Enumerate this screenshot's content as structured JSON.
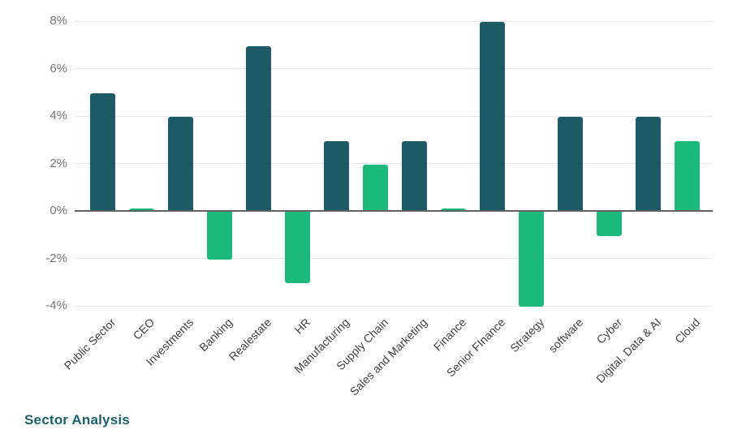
{
  "title": "Sector Analysis",
  "chart_data": {
    "type": "bar",
    "title": "Sector Analysis",
    "xlabel": "",
    "ylabel": "",
    "categories": [
      "Public Sector",
      "CEO",
      "Investments",
      "Banking",
      "Realestate",
      "HR",
      "Manufacturing",
      "Supply Chain",
      "Sales and Marketing",
      "Finance",
      "Senior FInance",
      "Strategy",
      "software",
      "Cyber",
      "Digital, Data & AI",
      "Cloud"
    ],
    "values": [
      4.95,
      0.1,
      3.95,
      -2.05,
      6.95,
      -3.05,
      2.95,
      1.95,
      2.95,
      0.1,
      7.95,
      -4.05,
      3.95,
      -1.05,
      3.95,
      2.95
    ],
    "bar_colors": [
      "dark",
      "green",
      "dark",
      "green",
      "dark",
      "green",
      "dark",
      "green",
      "dark",
      "green",
      "dark",
      "green",
      "dark",
      "green",
      "dark",
      "green"
    ],
    "ylim": [
      -4,
      8
    ],
    "grid": true,
    "legend": false,
    "yticks": [
      {
        "value": 8,
        "label": "8%"
      },
      {
        "value": 6,
        "label": "6%"
      },
      {
        "value": 4,
        "label": "4%"
      },
      {
        "value": 2,
        "label": "2%"
      },
      {
        "value": 0,
        "label": "0%"
      },
      {
        "value": -2,
        "label": "-2%"
      },
      {
        "value": -4,
        "label": "-4%"
      }
    ],
    "colors": {
      "bar_dark": "#1d5a66",
      "bar_green": "#1cb97c",
      "gridline": "#e3e3e3",
      "axis_line": "#616161",
      "ytick_text": "#757575",
      "xtick_text": "#3f3f3f",
      "title_text": "#1d5f6b"
    }
  }
}
